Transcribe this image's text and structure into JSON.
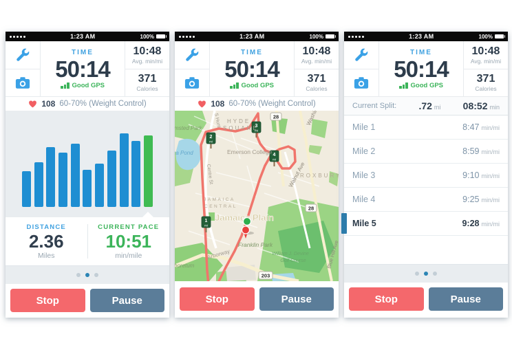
{
  "colors": {
    "accent_blue": "#41a2e0",
    "green": "#3cb45a",
    "dark_text": "#2d3c4b",
    "slate_text": "#8398ab",
    "stop_red": "#f4686c",
    "pause_slate": "#5b7d99",
    "heart_red": "#f15f63",
    "split_active_tab_blue": "#2d7cab",
    "route_red": "#f0756c"
  },
  "status_bar": {
    "time": "1:23 AM",
    "battery_percent": "100%"
  },
  "header": {
    "time_label": "TIME",
    "time_value": "50:14",
    "gps_status": "Good GPS",
    "avg_pace_value": "10:48",
    "avg_pace_label": "Avg. min/mi",
    "calories_value": "371",
    "calories_label": "Calories"
  },
  "heart_rate": {
    "bpm": "108",
    "zone": "60-70% (Weight Control)"
  },
  "chart_data": {
    "type": "bar",
    "title": "",
    "description": "Per-interval pace bars on chart page; final (current) bar highlighted green; no axes or labels shown",
    "relative_heights": [
      52,
      65,
      87,
      79,
      92,
      54,
      63,
      82,
      107,
      96,
      104
    ],
    "bar_color": "#1e8ed2",
    "highlight_color": "#3fbb52",
    "highlight_index": 10
  },
  "stats": {
    "distance_label": "DISTANCE",
    "distance_value": "2.36",
    "distance_unit": "Miles",
    "pace_label": "CURRENT PACE",
    "pace_value": "10:51",
    "pace_unit": "min/mile"
  },
  "splits": {
    "current_label": "Current Split:",
    "current_distance": ".72",
    "current_distance_unit": "mi",
    "current_time": "08:52",
    "current_time_unit": "min",
    "active_row_index": 4,
    "rows": [
      {
        "label": "Mile 1",
        "value": "8:47",
        "unit": "min/mi"
      },
      {
        "label": "Mile 2",
        "value": "8:59",
        "unit": "min/mi"
      },
      {
        "label": "Mile 3",
        "value": "9:10",
        "unit": "min/mi"
      },
      {
        "label": "Mile 4",
        "value": "9:25",
        "unit": "min/mi"
      },
      {
        "label": "Mile 5",
        "value": "9:28",
        "unit": "min/mi"
      }
    ]
  },
  "buttons": {
    "stop": "Stop",
    "pause": "Pause"
  },
  "map": {
    "labels": {
      "olmsted_park": "Olmsted Park",
      "hyde_line1": "HYDE",
      "hyde_line2": "SQUARE",
      "s_huntington": "S Hunt",
      "jamaica_pond": "Jamaica Pond",
      "emerson_college": "Emerson College",
      "washington_st": "Washington St",
      "walnut_ave": "Walnut Ave",
      "roxbury": "ROXBURY",
      "centre_st": "Centre St",
      "jamaica_line1": "JAMAICA",
      "jamaica_line2": "CENTRAL",
      "jamaica_plain": "Jamaica Plain",
      "franklin_park": "Franklin Park",
      "arborway": "Arborway",
      "golf_line1": "William J. Devine",
      "golf_line2": "Golf Course",
      "blue_hill_ave": "Blue Hill Ave",
      "arboretum": "Arboretum"
    },
    "shields": [
      "28",
      "28",
      "203"
    ],
    "mile_markers": [
      {
        "num": "1",
        "unit": "mi"
      },
      {
        "num": "2",
        "unit": "mi"
      },
      {
        "num": "3",
        "unit": "mi"
      },
      {
        "num": "4",
        "unit": "mi"
      }
    ]
  }
}
